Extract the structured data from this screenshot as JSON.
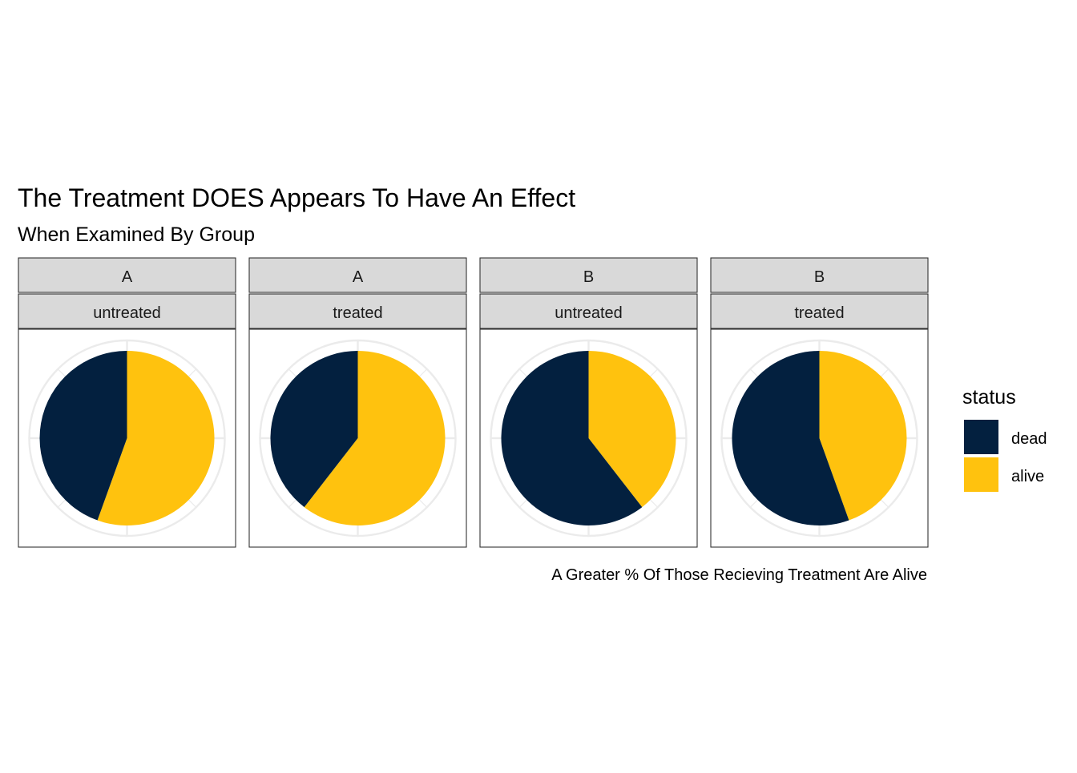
{
  "chart_data": {
    "type": "pie",
    "title": "The Treatment DOES Appears To Have An Effect",
    "subtitle": "When Examined By Group",
    "caption": "A Greater % Of Those Recieving Treatment Are Alive",
    "legend": {
      "title": "status",
      "position": "right",
      "entries": [
        "dead",
        "alive"
      ]
    },
    "series": [
      {
        "name": "dead",
        "color": "#03203f"
      },
      {
        "name": "alive",
        "color": "#ffc20e"
      }
    ],
    "facets": [
      {
        "group": "A",
        "treatment": "untreated",
        "alive_pct": 55.5,
        "dead_pct": 44.5
      },
      {
        "group": "A",
        "treatment": "treated",
        "alive_pct": 60.5,
        "dead_pct": 39.5
      },
      {
        "group": "B",
        "treatment": "untreated",
        "alive_pct": 39.5,
        "dead_pct": 60.5
      },
      {
        "group": "B",
        "treatment": "treated",
        "alive_pct": 44.5,
        "dead_pct": 55.5
      }
    ],
    "grid": true
  }
}
